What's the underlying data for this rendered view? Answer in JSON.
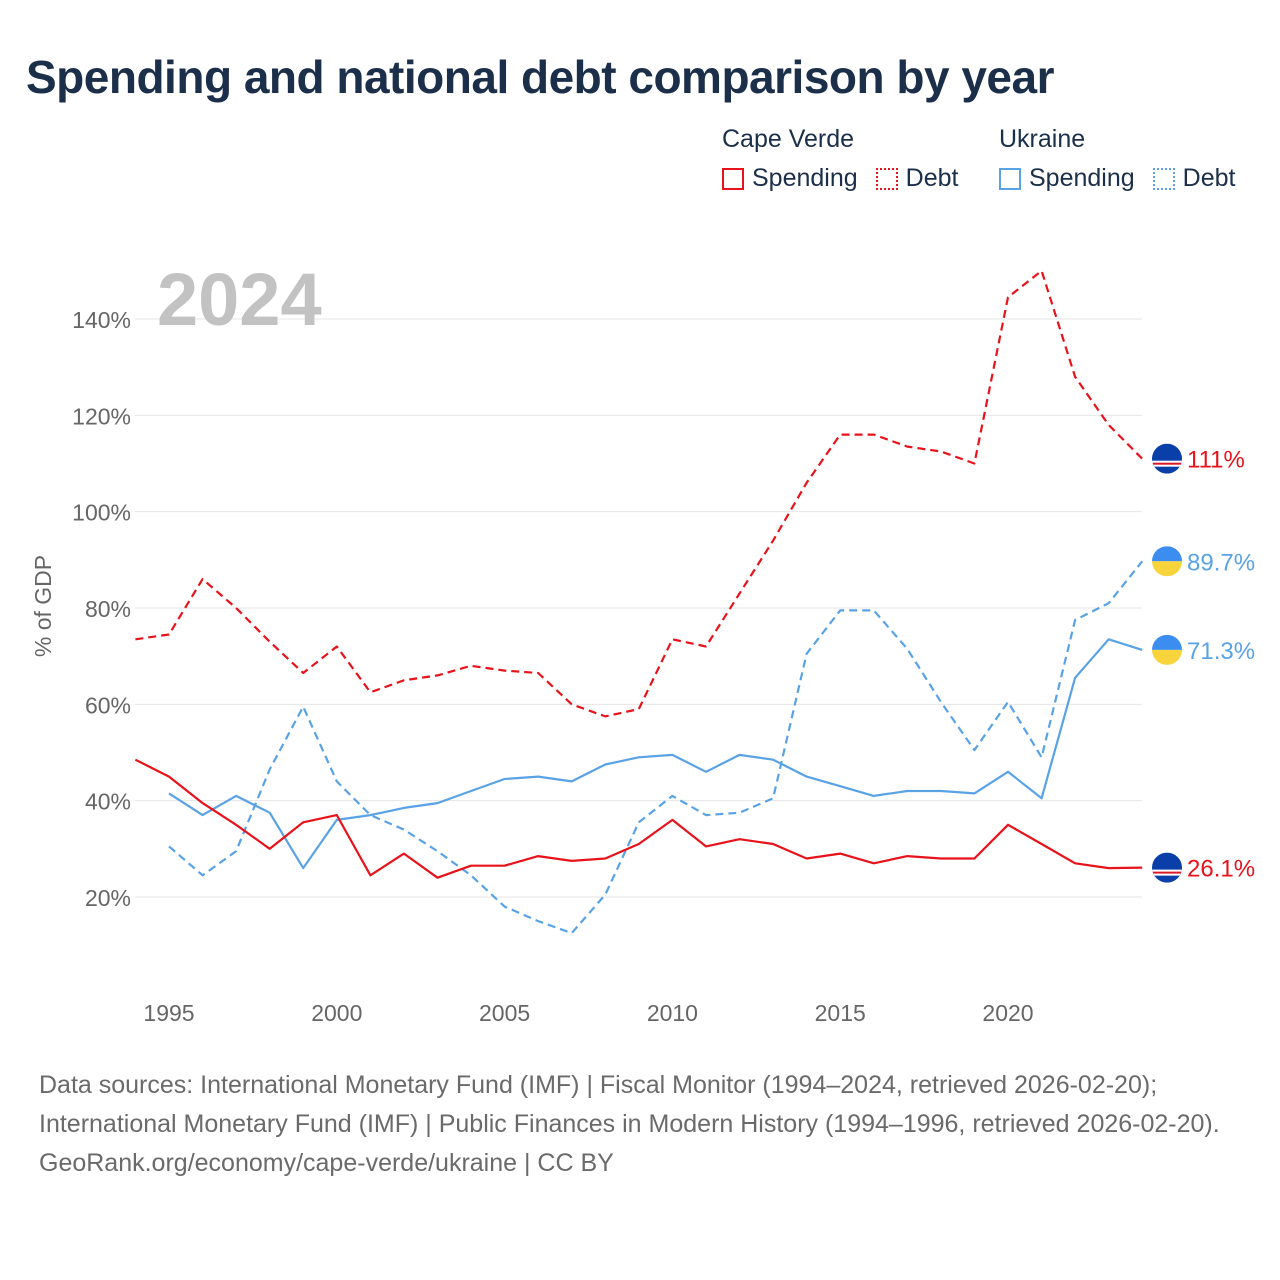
{
  "title": "Spending and national debt comparison by year",
  "legend": {
    "groups": [
      {
        "name": "Cape Verde",
        "items": [
          {
            "label": "Spending",
            "style": "solid",
            "color": "#e8121b"
          },
          {
            "label": "Debt",
            "style": "dotted",
            "color": "#e8121b"
          }
        ]
      },
      {
        "name": "Ukraine",
        "items": [
          {
            "label": "Spending",
            "style": "solid",
            "color": "#5aa2e6"
          },
          {
            "label": "Debt",
            "style": "dotted",
            "color": "#5aa2e6"
          }
        ]
      }
    ]
  },
  "chart_data": {
    "type": "line",
    "year_watermark": "2024",
    "ylabel": "% of GDP",
    "xlabel": "",
    "xlim": [
      1994,
      2024
    ],
    "ylim": [
      5,
      150
    ],
    "x_ticks": [
      1995,
      2000,
      2005,
      2010,
      2015,
      2020
    ],
    "y_ticks": [
      20,
      40,
      60,
      80,
      100,
      120,
      140
    ],
    "y_tick_labels": [
      "20%",
      "40%",
      "60%",
      "80%",
      "100%",
      "120%",
      "140%"
    ],
    "grid": true,
    "series": [
      {
        "name": "Cape Verde Debt",
        "country": "Cape Verde",
        "metric": "Debt",
        "color": "#e8121b",
        "dash": "dashed",
        "end_label": "111%",
        "end_value": 111,
        "flag": "cape-verde",
        "x": [
          1994,
          1995,
          1996,
          1997,
          1998,
          1999,
          2000,
          2001,
          2002,
          2003,
          2004,
          2005,
          2006,
          2007,
          2008,
          2009,
          2010,
          2011,
          2012,
          2013,
          2014,
          2015,
          2016,
          2017,
          2018,
          2019,
          2020,
          2021,
          2022,
          2023,
          2024
        ],
        "values": [
          73.5,
          74.5,
          86,
          80,
          73,
          66.5,
          72,
          62.5,
          65,
          66,
          68,
          67,
          66.5,
          60,
          57.5,
          59,
          73.5,
          72,
          83,
          94,
          106,
          116,
          116,
          113.5,
          112.5,
          110,
          144.5,
          150,
          128,
          118,
          111
        ]
      },
      {
        "name": "Ukraine Debt",
        "country": "Ukraine",
        "metric": "Debt",
        "color": "#5aa2e6",
        "dash": "dashed",
        "end_label": "89.7%",
        "end_value": 89.7,
        "flag": "ukraine",
        "x": [
          1995,
          1996,
          1997,
          1998,
          1999,
          2000,
          2001,
          2002,
          2003,
          2004,
          2005,
          2006,
          2007,
          2008,
          2009,
          2010,
          2011,
          2012,
          2013,
          2014,
          2015,
          2016,
          2017,
          2018,
          2019,
          2020,
          2021,
          2022,
          2023,
          2024
        ],
        "values": [
          30.5,
          24.5,
          29.5,
          46.5,
          59.5,
          44,
          37,
          34,
          29.5,
          24.5,
          18,
          15,
          12.5,
          20.5,
          35.5,
          41,
          37,
          37.5,
          40.5,
          70.5,
          79.5,
          79.5,
          71.5,
          60.5,
          50.5,
          60.5,
          49,
          77.5,
          81,
          89.7
        ]
      },
      {
        "name": "Ukraine Spending",
        "country": "Ukraine",
        "metric": "Spending",
        "color": "#5aa2e6",
        "dash": "solid",
        "end_label": "71.3%",
        "end_value": 71.3,
        "flag": "ukraine",
        "x": [
          1995,
          1996,
          1997,
          1998,
          1999,
          2000,
          2001,
          2002,
          2003,
          2004,
          2005,
          2006,
          2007,
          2008,
          2009,
          2010,
          2011,
          2012,
          2013,
          2014,
          2015,
          2016,
          2017,
          2018,
          2019,
          2020,
          2021,
          2022,
          2023,
          2024
        ],
        "values": [
          41.5,
          37,
          41,
          37.5,
          26,
          36,
          37,
          38.5,
          39.5,
          42,
          44.5,
          45,
          44,
          47.5,
          49,
          49.5,
          46,
          49.5,
          48.5,
          45,
          43,
          41,
          42,
          42,
          41.5,
          46,
          40.5,
          65.5,
          73.5,
          71.3
        ]
      },
      {
        "name": "Cape Verde Spending",
        "country": "Cape Verde",
        "metric": "Spending",
        "color": "#e8121b",
        "dash": "solid",
        "end_label": "26.1%",
        "end_value": 26.1,
        "flag": "cape-verde",
        "x": [
          1994,
          1995,
          1996,
          1997,
          1998,
          1999,
          2000,
          2001,
          2002,
          2003,
          2004,
          2005,
          2006,
          2007,
          2008,
          2009,
          2010,
          2011,
          2012,
          2013,
          2014,
          2015,
          2016,
          2017,
          2018,
          2019,
          2020,
          2021,
          2022,
          2023,
          2024
        ],
        "values": [
          48.5,
          45,
          39.5,
          35,
          30,
          35.5,
          37,
          24.5,
          29,
          24,
          26.5,
          26.5,
          28.5,
          27.5,
          28,
          31,
          36,
          30.5,
          32,
          31,
          28,
          29,
          27,
          28.5,
          28,
          28,
          35,
          31,
          27,
          26,
          26.1
        ]
      }
    ]
  },
  "footer": {
    "sources": "Data sources: International Monetary Fund (IMF) | Fiscal Monitor (1994–2024, retrieved 2026-02-20); International Monetary Fund (IMF) | Public Finances in Modern History (1994–1996, retrieved 2026-02-20).",
    "credit": "GeoRank.org/economy/cape-verde/ukraine | CC BY"
  },
  "colors": {
    "title": "#1c2f4a",
    "axis_text": "#666666",
    "grid": "#e6e6e6",
    "watermark": "#c2c2c2",
    "cape_verde": "#e8121b",
    "ukraine": "#5aa2e6"
  }
}
